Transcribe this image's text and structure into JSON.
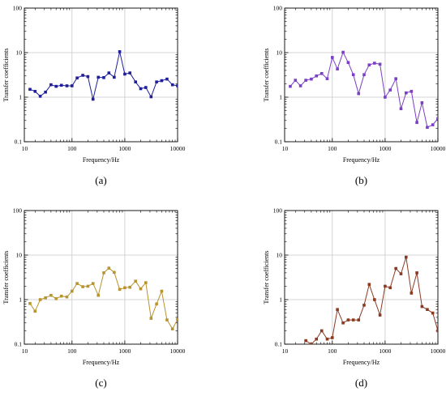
{
  "chart_data": [
    {
      "panel_label": "(a)",
      "type": "line",
      "title": "",
      "xlabel": "Frequency/Hz",
      "ylabel": "Transfer coefficients",
      "x_scale": "log",
      "y_scale": "log",
      "xlim": [
        12.5,
        10000
      ],
      "ylim": [
        0.1,
        100
      ],
      "x_tick_labels": [
        "10",
        "100",
        "1000",
        "10000"
      ],
      "y_tick_labels": [
        "0.1",
        "1",
        "10",
        "100"
      ],
      "grid": true,
      "color": "#1f1f9a",
      "marker": "square",
      "x": [
        16,
        20,
        25,
        31.5,
        40,
        50,
        63,
        80,
        100,
        125,
        160,
        200,
        250,
        315,
        400,
        500,
        630,
        800,
        1000,
        1250,
        1600,
        2000,
        2500,
        3150,
        4000,
        5000,
        6300,
        8000,
        10000
      ],
      "y": [
        1.5,
        1.35,
        1.05,
        1.3,
        1.9,
        1.75,
        1.85,
        1.8,
        1.8,
        2.7,
        3.1,
        2.9,
        0.9,
        2.8,
        2.75,
        3.5,
        2.8,
        10.5,
        3.3,
        3.5,
        2.2,
        1.55,
        1.65,
        1.02,
        2.2,
        2.35,
        2.55,
        1.9,
        1.8
      ]
    },
    {
      "panel_label": "(b)",
      "type": "line",
      "title": "",
      "xlabel": "Frequency/Hz",
      "ylabel": "Transfer coefficients",
      "x_scale": "log",
      "y_scale": "log",
      "xlim": [
        12.5,
        10000
      ],
      "ylim": [
        0.1,
        100
      ],
      "x_tick_labels": [
        "10",
        "100",
        "1000",
        "10000"
      ],
      "y_tick_labels": [
        "0.1",
        "1",
        "10",
        "100"
      ],
      "grid": true,
      "color": "#7a3fc4",
      "marker": "square",
      "x": [
        16,
        20,
        25,
        31.5,
        40,
        50,
        63,
        80,
        100,
        125,
        160,
        200,
        250,
        315,
        400,
        500,
        630,
        800,
        1000,
        1250,
        1600,
        2000,
        2500,
        3150,
        4000,
        5000,
        6300,
        8000,
        10000
      ],
      "y": [
        1.75,
        2.4,
        1.8,
        2.4,
        2.55,
        3.0,
        3.4,
        2.6,
        7.8,
        4.3,
        10.2,
        6.0,
        3.2,
        1.2,
        3.2,
        5.3,
        5.8,
        5.5,
        1.0,
        1.45,
        2.6,
        0.55,
        1.25,
        1.35,
        0.27,
        0.75,
        0.21,
        0.24,
        0.33
      ]
    },
    {
      "panel_label": "(c)",
      "type": "line",
      "title": "",
      "xlabel": "Frequency/Hz",
      "ylabel": "Transfer coefficients",
      "x_scale": "log",
      "y_scale": "log",
      "xlim": [
        12.5,
        10000
      ],
      "ylim": [
        0.1,
        100
      ],
      "x_tick_labels": [
        "10",
        "100",
        "1000",
        "10000"
      ],
      "y_tick_labels": [
        "0.1",
        "1",
        "10",
        "100"
      ],
      "grid": true,
      "color": "#b8942f",
      "marker": "square",
      "x": [
        16,
        20,
        25,
        31.5,
        40,
        50,
        63,
        80,
        100,
        125,
        160,
        200,
        250,
        315,
        400,
        500,
        630,
        800,
        1000,
        1250,
        1600,
        2000,
        2500,
        3150,
        4000,
        5000,
        6300,
        8000,
        10000
      ],
      "y": [
        0.82,
        0.55,
        1.0,
        1.1,
        1.25,
        1.05,
        1.2,
        1.15,
        1.55,
        2.3,
        1.95,
        2.0,
        2.3,
        1.25,
        4.0,
        5.1,
        4.1,
        1.7,
        1.85,
        1.9,
        2.6,
        1.75,
        2.4,
        0.38,
        0.8,
        1.55,
        0.35,
        0.22,
        0.36
      ]
    },
    {
      "panel_label": "(d)",
      "type": "line",
      "title": "",
      "xlabel": "Frequency/Hz",
      "ylabel": "Transfer coefficients",
      "x_scale": "log",
      "y_scale": "log",
      "xlim": [
        12.5,
        10000
      ],
      "ylim": [
        0.1,
        100
      ],
      "x_tick_labels": [
        "10",
        "100",
        "1000",
        "10000"
      ],
      "y_tick_labels": [
        "0.1",
        "1",
        "10",
        "100"
      ],
      "grid": true,
      "color": "#8b3a22",
      "marker": "square",
      "x": [
        31.5,
        40,
        50,
        63,
        80,
        100,
        125,
        160,
        200,
        250,
        315,
        400,
        500,
        630,
        800,
        1000,
        1250,
        1600,
        2000,
        2500,
        3150,
        4000,
        5000,
        6300,
        8000,
        10000
      ],
      "y": [
        0.12,
        0.1,
        0.13,
        0.2,
        0.13,
        0.14,
        0.6,
        0.3,
        0.35,
        0.35,
        0.35,
        0.75,
        2.2,
        1.0,
        0.45,
        2.0,
        1.85,
        5.0,
        3.8,
        9.0,
        1.4,
        4.0,
        0.7,
        0.6,
        0.5,
        0.2
      ]
    }
  ]
}
